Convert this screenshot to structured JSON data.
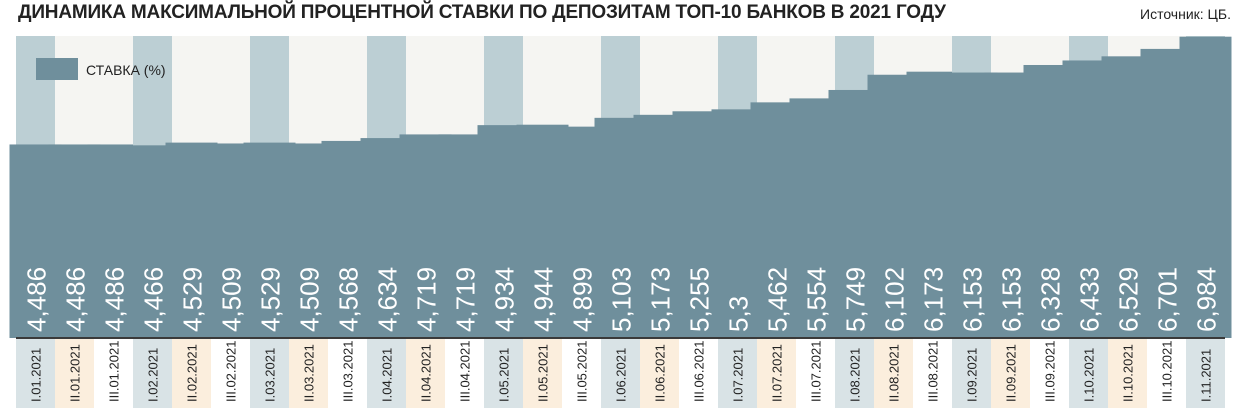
{
  "title": "ДИНАМИКА МАКСИМАЛЬНОЙ ПРОЦЕНТНОЙ СТАВКИ ПО ДЕПОЗИТАМ ТОП-10 БАНКОВ В 2021 ГОДУ",
  "source": "Источник: ЦБ.",
  "colors": {
    "bar": "#6f8f9c",
    "stripe": "#bccfd4",
    "plot_bg": "#f5f5f2",
    "label_bg_light": "#d9e3e6",
    "label_bg_warm": "#fbeedd",
    "value_text": "#ffffff",
    "date_text": "#222222"
  },
  "chart_data": {
    "type": "bar",
    "categories": [
      "I.01.2021",
      "II.01.2021",
      "III.01.2021",
      "I.02.2021",
      "II.02.2021",
      "III.02.2021",
      "I.03.2021",
      "II.03.2021",
      "III.03.2021",
      "I.04.2021",
      "II.04.2021",
      "III.04.2021",
      "I.05.2021",
      "II.05.2021",
      "III.05.2021",
      "I.06.2021",
      "II.06.2021",
      "III.06.2021",
      "I.07.2021",
      "II.07.2021",
      "III.07.2021",
      "I.08.2021",
      "II.08.2021",
      "III.08.2021",
      "I.09.2021",
      "II.09.2021",
      "III.09.2021",
      "I.10.2021",
      "II.10.2021",
      "III.10.2021",
      "I.11.2021"
    ],
    "series": [
      {
        "name": "СТАВКА (%)",
        "values": [
          4.486,
          4.486,
          4.486,
          4.466,
          4.529,
          4.509,
          4.529,
          4.509,
          4.568,
          4.634,
          4.719,
          4.719,
          4.934,
          4.944,
          4.899,
          5.103,
          5.173,
          5.255,
          5.3,
          5.462,
          5.554,
          5.749,
          6.102,
          6.173,
          6.153,
          6.153,
          6.328,
          6.433,
          6.529,
          6.701,
          6.984
        ]
      }
    ],
    "value_labels": [
      "4,486",
      "4,486",
      "4,486",
      "4,466",
      "4,529",
      "4,509",
      "4,529",
      "4,509",
      "4,568",
      "4,634",
      "4,719",
      "4,719",
      "4,934",
      "4,944",
      "4,899",
      "5,103",
      "5,173",
      "5,255",
      "5,3",
      "5,462",
      "5,554",
      "5,749",
      "6,102",
      "6,173",
      "6,153",
      "6,153",
      "6,328",
      "6,433",
      "6,529",
      "6,701",
      "6,984"
    ],
    "legend": {
      "label": "СТАВКА (%)",
      "position": "top-left"
    },
    "ylim": [
      0,
      7
    ],
    "grid": false,
    "xlabel": "",
    "ylabel": ""
  }
}
